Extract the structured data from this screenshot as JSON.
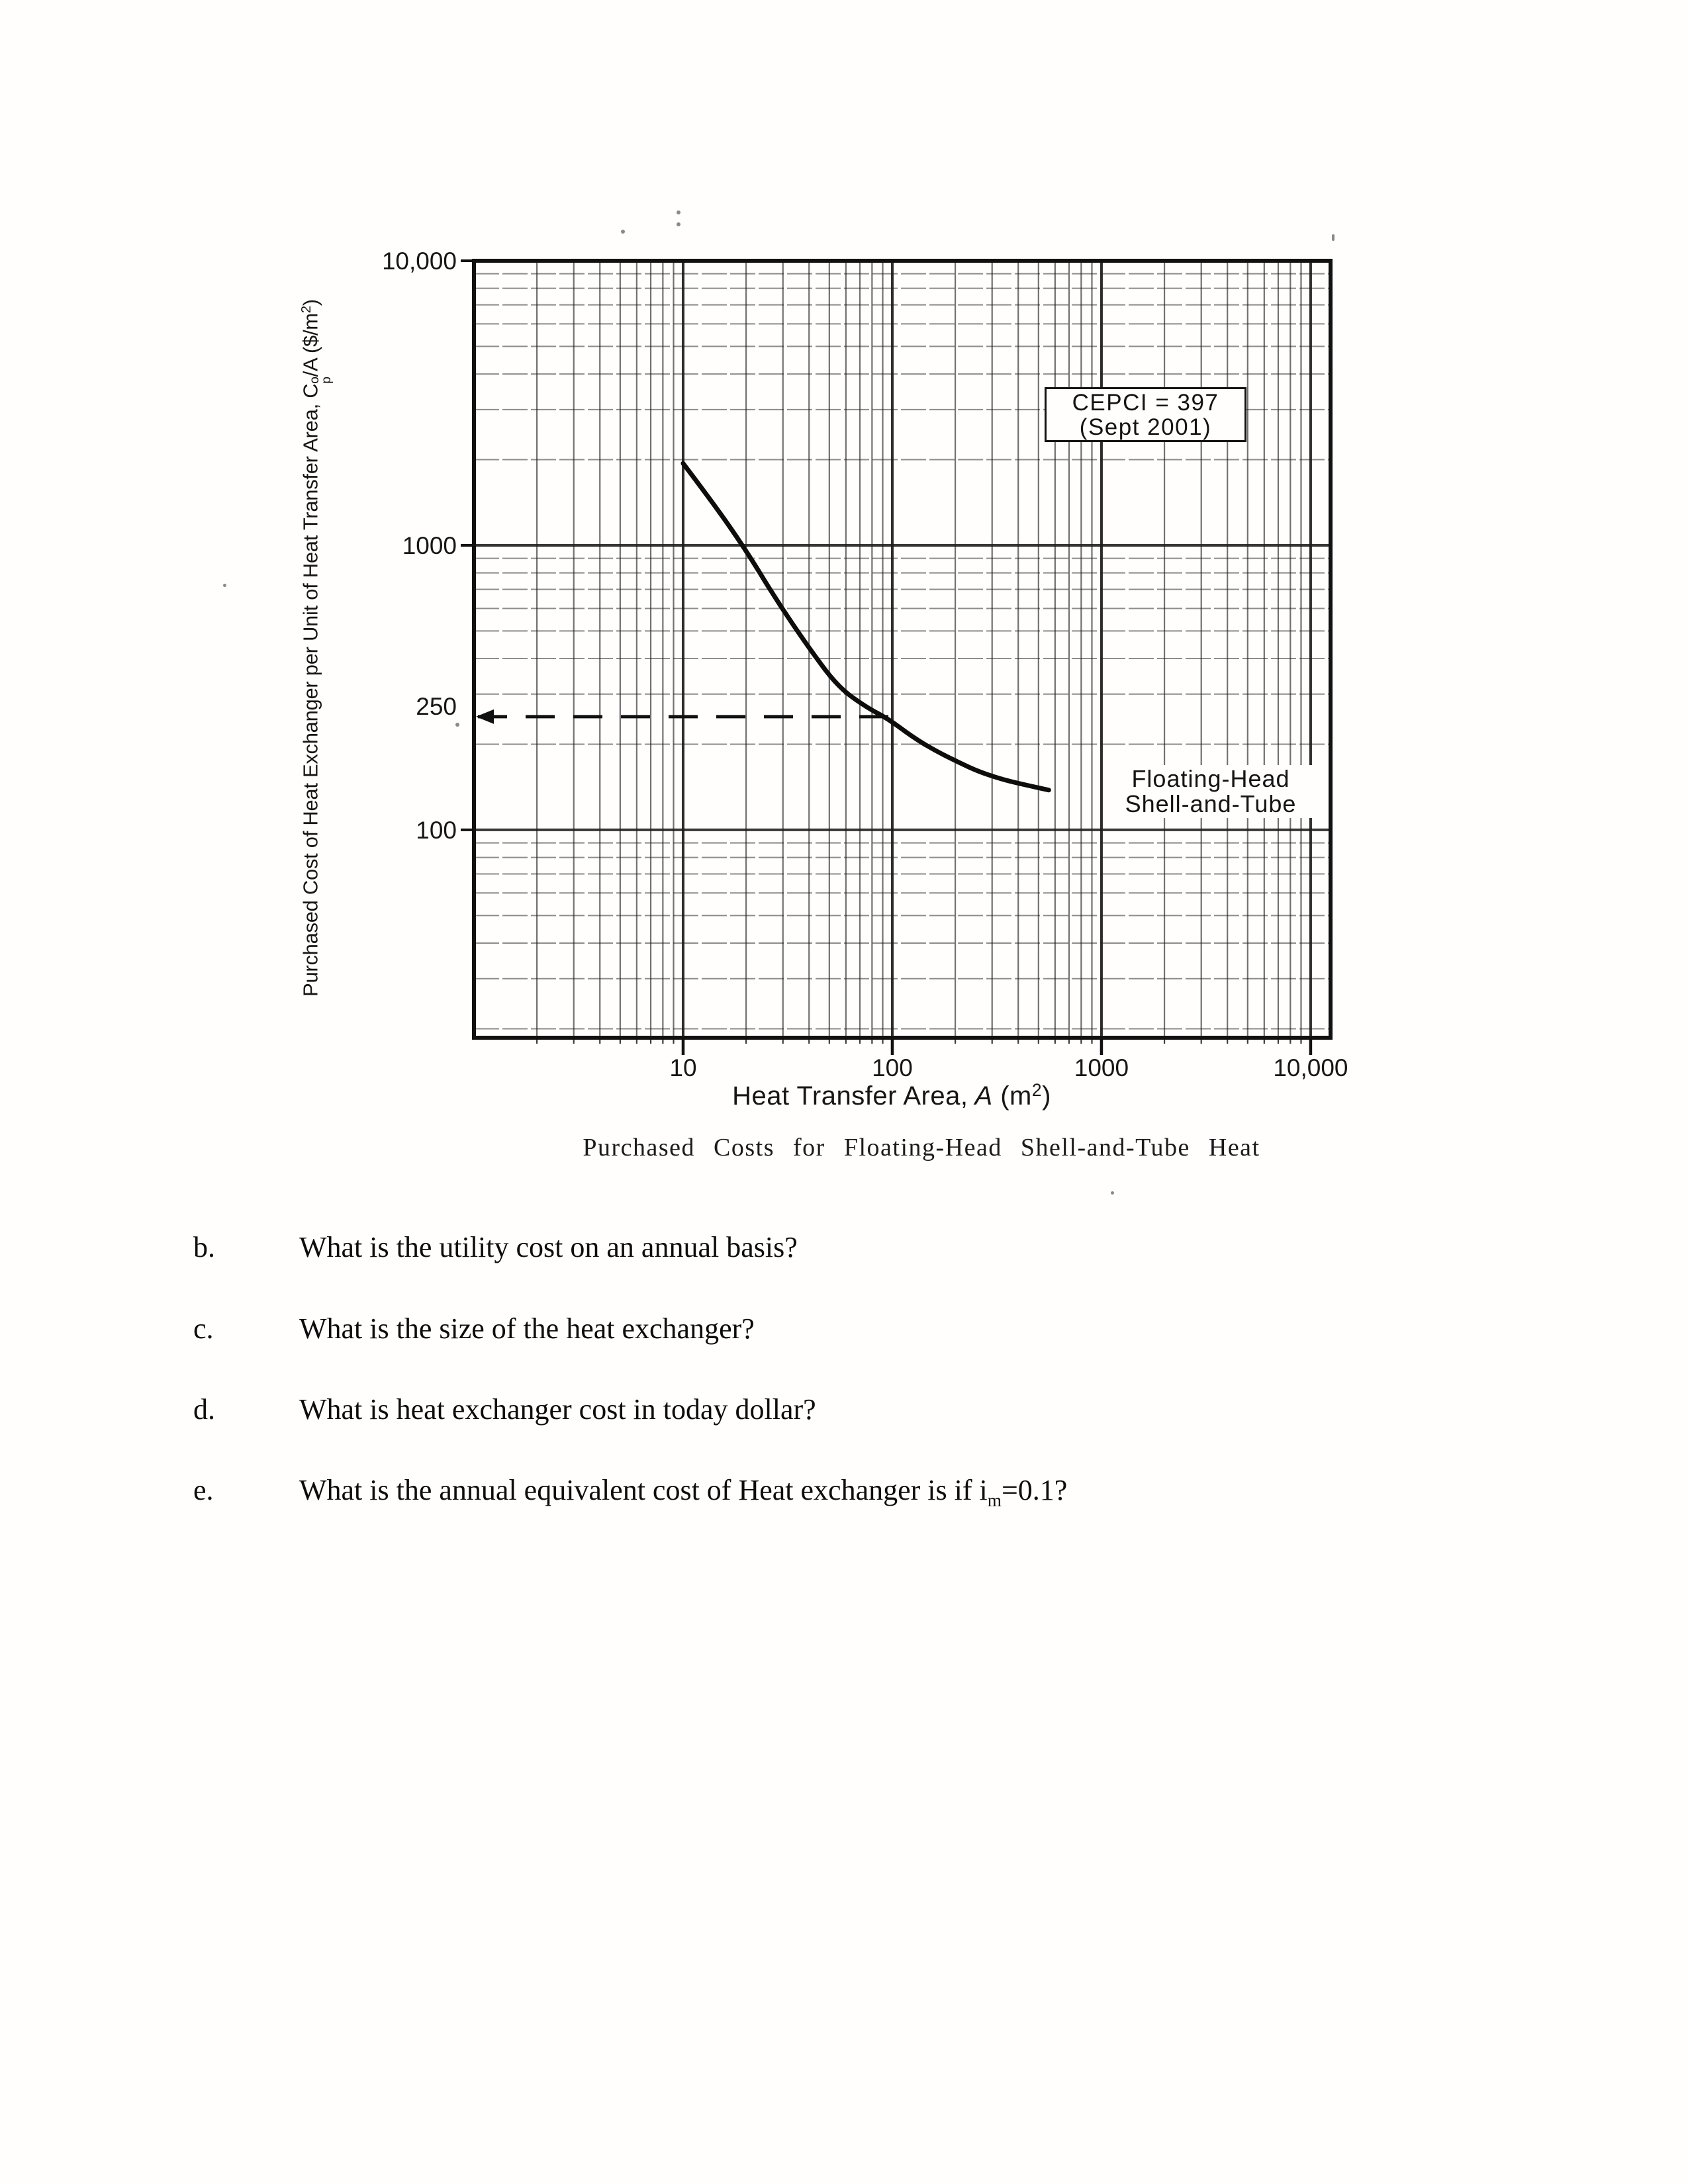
{
  "figure": {
    "y_axis_title": {
      "prefix": "Purchased Cost of Heat Exchanger per Unit of Heat Transfer Area,  ",
      "symbol_base": "C",
      "symbol_sup": "o",
      "symbol_sub": "p",
      "suffix_1": "/A ($/m",
      "suffix_sup": "2",
      "suffix_2": ")"
    },
    "x_axis_title": {
      "prefix": "Heat Transfer Area,",
      "var": "A",
      "unit_1": " (m",
      "unit_sup": "2",
      "unit_2": ")"
    },
    "annotation_box": {
      "line1": "CEPCI = 397",
      "line2": "(Sept 2001)"
    },
    "curve_label": {
      "line1": "Floating-Head",
      "line2": "Shell-and-Tube"
    },
    "caption": "Purchased Costs for Floating-Head Shell-and-Tube Heat"
  },
  "chart_data": {
    "type": "line",
    "title": "",
    "xlabel": "Heat Transfer Area, A (m²)",
    "ylabel": "Purchased Cost of Heat Exchanger per Unit of Heat Transfer Area, Cp°/A ($/m²)",
    "x_scale": "log",
    "y_scale": "log",
    "xlim": [
      1,
      12450
    ],
    "ylim": [
      18.6,
      10000
    ],
    "grid": "log minor grid, both axes, on",
    "legend_position": "none",
    "x_ticks": [
      {
        "value": 10,
        "label": "10"
      },
      {
        "value": 100,
        "label": "100"
      },
      {
        "value": 1000,
        "label": "1000"
      },
      {
        "value": 10000,
        "label": "10,000"
      }
    ],
    "y_ticks": [
      {
        "value": 10000,
        "label": "10,000",
        "tick": true,
        "dy": 0
      },
      {
        "value": 1000,
        "label": "1000",
        "tick": true,
        "dy": 0
      },
      {
        "value": 250,
        "label": "250",
        "tick": false,
        "dy": -16
      },
      {
        "value": 100,
        "label": "100",
        "tick": true,
        "dy": 0
      }
    ],
    "series": [
      {
        "name": "Floating-Head Shell-and-Tube",
        "points": [
          [
            10,
            1940
          ],
          [
            14,
            1400
          ],
          [
            20,
            960
          ],
          [
            28,
            640
          ],
          [
            40,
            435
          ],
          [
            55,
            318
          ],
          [
            75,
            270
          ],
          [
            96,
            245
          ],
          [
            125,
            212
          ],
          [
            160,
            190
          ],
          [
            210,
            172
          ],
          [
            260,
            160
          ],
          [
            340,
            150
          ],
          [
            430,
            144
          ],
          [
            560,
            138
          ]
        ]
      }
    ],
    "reference_line": {
      "value": 250,
      "x_start": 1,
      "x_end": 96,
      "style": "dashed",
      "arrow": "left"
    },
    "annotations": [
      "CEPCI = 397 (Sept 2001)",
      "Floating-Head Shell-and-Tube"
    ]
  },
  "questions": {
    "b": {
      "letter": "b.",
      "text": "What is the utility cost on an annual basis?"
    },
    "c": {
      "letter": "c.",
      "text": "What is the size of the heat exchanger?"
    },
    "d": {
      "letter": "d.",
      "text": "What is heat exchanger cost in today dollar?"
    },
    "e": {
      "letter": "e.",
      "prefix": "What is the annual equivalent cost of Heat exchanger is if i",
      "sub": "m",
      "suffix": "=0.1?"
    }
  }
}
